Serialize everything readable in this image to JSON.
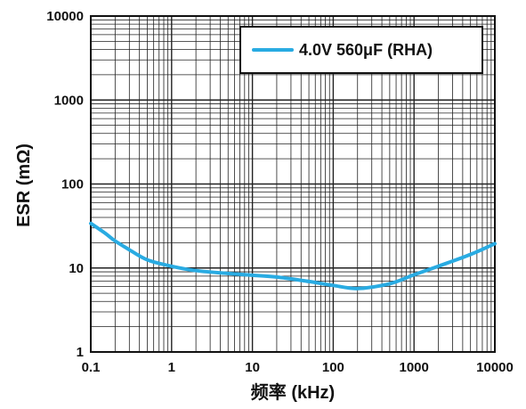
{
  "chart_data": {
    "type": "line",
    "title": "",
    "xlabel": "频率 (kHz)",
    "ylabel": "ESR (mΩ)",
    "x_scale": "log",
    "y_scale": "log",
    "xlim": [
      0.1,
      10000
    ],
    "ylim": [
      1,
      10000
    ],
    "x_tick_labels": [
      "0.1",
      "1",
      "10",
      "100",
      "1000",
      "10000"
    ],
    "y_tick_labels": [
      "1",
      "10",
      "100",
      "1000",
      "10000"
    ],
    "grid": true,
    "legend_position": "top-right",
    "colors": {
      "series": "#29ABE2",
      "axes": "#111111",
      "grid": "#222222"
    },
    "series": [
      {
        "name": "4.0V 560μF (RHA)",
        "x": [
          0.1,
          0.15,
          0.2,
          0.3,
          0.5,
          1,
          2,
          5,
          10,
          20,
          50,
          100,
          200,
          500,
          1000,
          2000,
          5000,
          10000
        ],
        "y": [
          34,
          26,
          21,
          16.5,
          12.5,
          10.5,
          9.3,
          8.6,
          8.2,
          7.8,
          6.9,
          6.2,
          5.7,
          6.5,
          8.3,
          10.5,
          14.5,
          19.5
        ]
      }
    ]
  }
}
